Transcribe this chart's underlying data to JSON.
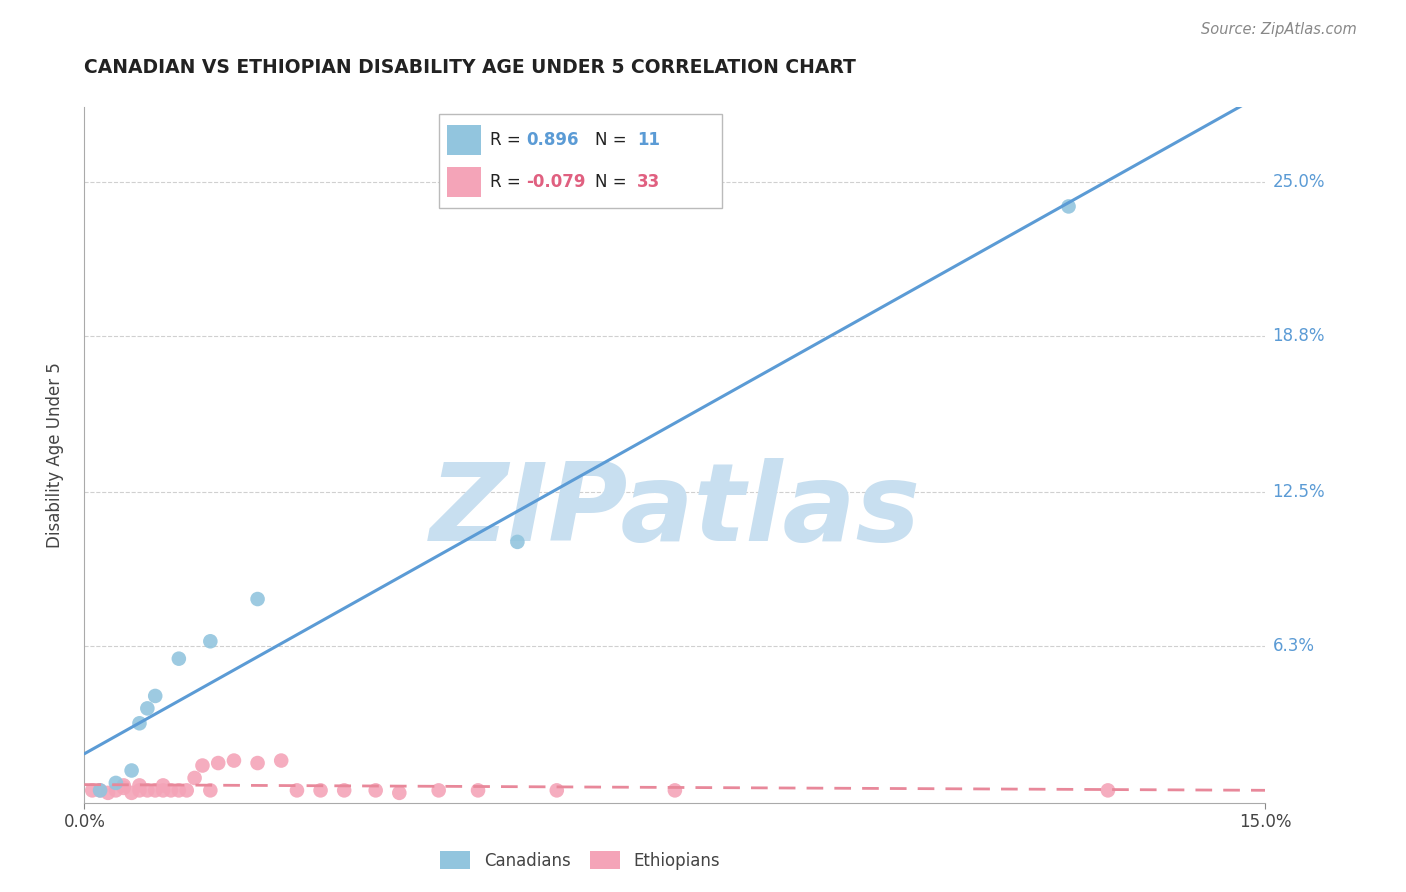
{
  "title": "CANADIAN VS ETHIOPIAN DISABILITY AGE UNDER 5 CORRELATION CHART",
  "source": "Source: ZipAtlas.com",
  "ylabel": "Disability Age Under 5",
  "xlim": [
    0.0,
    0.15
  ],
  "ylim": [
    0.0,
    0.28
  ],
  "ytick_positions": [
    0.0,
    0.063,
    0.125,
    0.188,
    0.25
  ],
  "ytick_labels": [
    "",
    "6.3%",
    "12.5%",
    "18.8%",
    "25.0%"
  ],
  "canadian_R": "0.896",
  "canadian_N": "11",
  "ethiopian_R": "-0.079",
  "ethiopian_N": "33",
  "canadian_color": "#92c5de",
  "ethiopian_color": "#f4a4b8",
  "trendline_canadian_color": "#5b9bd5",
  "trendline_ethiopian_color": "#e8889a",
  "background_color": "#ffffff",
  "grid_color": "#d0d0d0",
  "watermark_color": "#c8dff0",
  "canadian_x": [
    0.002,
    0.004,
    0.006,
    0.007,
    0.008,
    0.009,
    0.012,
    0.016,
    0.022,
    0.055,
    0.125
  ],
  "canadian_y": [
    0.005,
    0.008,
    0.013,
    0.032,
    0.038,
    0.043,
    0.058,
    0.065,
    0.082,
    0.105,
    0.24
  ],
  "ethiopian_x": [
    0.001,
    0.002,
    0.003,
    0.004,
    0.005,
    0.005,
    0.006,
    0.007,
    0.007,
    0.008,
    0.009,
    0.01,
    0.01,
    0.011,
    0.012,
    0.013,
    0.014,
    0.015,
    0.016,
    0.017,
    0.019,
    0.022,
    0.025,
    0.027,
    0.03,
    0.033,
    0.037,
    0.04,
    0.045,
    0.05,
    0.06,
    0.075,
    0.13
  ],
  "ethiopian_y": [
    0.005,
    0.005,
    0.004,
    0.005,
    0.006,
    0.007,
    0.004,
    0.005,
    0.007,
    0.005,
    0.005,
    0.005,
    0.007,
    0.005,
    0.005,
    0.005,
    0.01,
    0.015,
    0.005,
    0.016,
    0.017,
    0.016,
    0.017,
    0.005,
    0.005,
    0.005,
    0.005,
    0.004,
    0.005,
    0.005,
    0.005,
    0.005,
    0.005
  ]
}
